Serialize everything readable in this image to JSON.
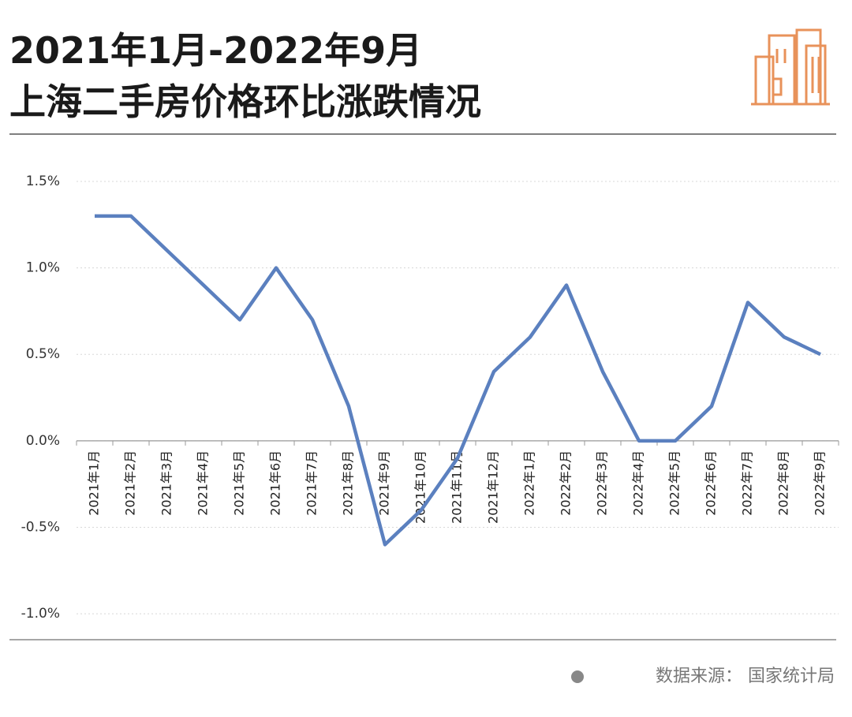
{
  "chart_data": {
    "type": "line",
    "title": [
      "2021年1月-2022年9月",
      "上海二手房价格环比涨跌情况"
    ],
    "source": "数据来源： 国家统计局",
    "categories": [
      "2021年1月",
      "2021年2月",
      "2021年3月",
      "2021年4月",
      "2021年5月",
      "2021年6月",
      "2021年7月",
      "2021年8月",
      "2021年9月",
      "2021年10月",
      "2021年11月",
      "2021年12月",
      "2022年1月",
      "2022年2月",
      "2022年3月",
      "2022年4月",
      "2022年5月",
      "2022年6月",
      "2022年7月",
      "2022年8月",
      "2022年9月"
    ],
    "series": [
      {
        "color": "#5b80bf",
        "values": [
          1.3,
          1.3,
          1.1,
          0.9,
          0.7,
          1.0,
          0.7,
          0.2,
          -0.6,
          -0.4,
          -0.1,
          0.4,
          0.6,
          0.9,
          0.4,
          0.0,
          0.0,
          0.2,
          0.8,
          0.6,
          0.5
        ]
      }
    ],
    "ylim": [
      -1.15,
      1.5
    ],
    "yticks": [
      {
        "value": 1.5,
        "label": "1.5%"
      },
      {
        "value": 1.0,
        "label": "1.0%"
      },
      {
        "value": 0.5,
        "label": "0.5%"
      },
      {
        "value": 0.0,
        "label": "0.0%"
      },
      {
        "value": -0.5,
        "label": "-0.5%"
      },
      {
        "value": -1.0,
        "label": "-1.0%"
      }
    ],
    "grid": true
  }
}
